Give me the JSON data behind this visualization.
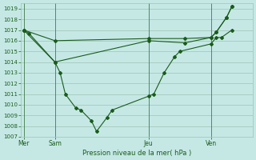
{
  "background_color": "#c5e8e5",
  "grid_color": "#9dc4b5",
  "line_color": "#1a5c1a",
  "marker_color": "#1a5c1a",
  "title": "Pression niveau de la mer( hPa )",
  "ylim": [
    1007,
    1019.5
  ],
  "yticks": [
    1007,
    1008,
    1009,
    1010,
    1011,
    1012,
    1013,
    1014,
    1015,
    1016,
    1017,
    1018,
    1019
  ],
  "day_positions": [
    0,
    6,
    24,
    36
  ],
  "day_labels": [
    "Mer",
    "Sam",
    "Jeu",
    "Ven"
  ],
  "xlim": [
    -0.5,
    44
  ],
  "series1": {
    "x": [
      0,
      1,
      6,
      7,
      8,
      10,
      11,
      13,
      14,
      16,
      17,
      24,
      25,
      27,
      29,
      30,
      36,
      37,
      38,
      40
    ],
    "y": [
      1017.0,
      1016.7,
      1014.0,
      1013.0,
      1011.0,
      1009.7,
      1009.5,
      1008.5,
      1007.5,
      1008.8,
      1009.5,
      1010.8,
      1011.0,
      1013.0,
      1014.5,
      1015.0,
      1015.7,
      1016.3,
      1016.3,
      1017.0
    ]
  },
  "series2": {
    "x": [
      0,
      6,
      24,
      31,
      36,
      37,
      39,
      40
    ],
    "y": [
      1017.0,
      1016.0,
      1016.2,
      1016.2,
      1016.3,
      1016.8,
      1018.2,
      1019.2
    ]
  },
  "series3": {
    "x": [
      0,
      6,
      24,
      31,
      36,
      37,
      39,
      40
    ],
    "y": [
      1017.0,
      1014.0,
      1016.0,
      1015.8,
      1016.3,
      1016.8,
      1018.2,
      1019.2
    ]
  }
}
